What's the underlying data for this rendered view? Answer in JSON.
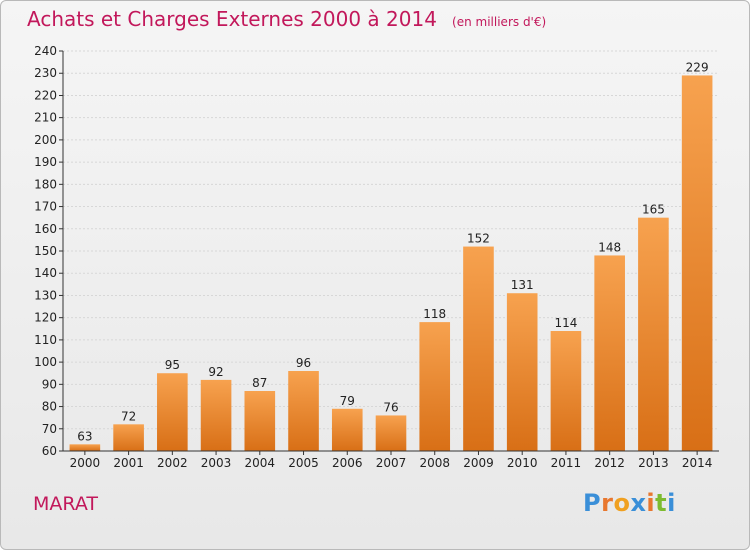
{
  "header": {
    "title": "Achats et Charges Externes 2000 à 2014",
    "subtitle": "(en milliers d'€)"
  },
  "footer": {
    "commune": "MARAT",
    "brand": "Proxiti"
  },
  "colors": {
    "title": "#c2185b",
    "bar_light": "#f7a24f",
    "bar_dark": "#d86f16",
    "grid": "#d7d7d7",
    "axis": "#333333",
    "brand_letters": [
      "#3a8fd8",
      "#e8772e",
      "#f0a020",
      "#3a8fd8",
      "#e8772e",
      "#7dbb2f",
      "#3a8fd8"
    ]
  },
  "chart_data": {
    "type": "bar",
    "title": "Achats et Charges Externes 2000 à 2014",
    "subtitle": "(en milliers d'€)",
    "xlabel": "",
    "ylabel": "",
    "categories": [
      "2000",
      "2001",
      "2002",
      "2003",
      "2004",
      "2005",
      "2006",
      "2007",
      "2008",
      "2009",
      "2010",
      "2011",
      "2012",
      "2013",
      "2014"
    ],
    "values": [
      63,
      72,
      95,
      92,
      87,
      96,
      79,
      76,
      118,
      152,
      131,
      114,
      148,
      165,
      229
    ],
    "ylim": [
      60,
      240
    ],
    "ytick_step": 10,
    "grid": true,
    "legend": "none"
  }
}
